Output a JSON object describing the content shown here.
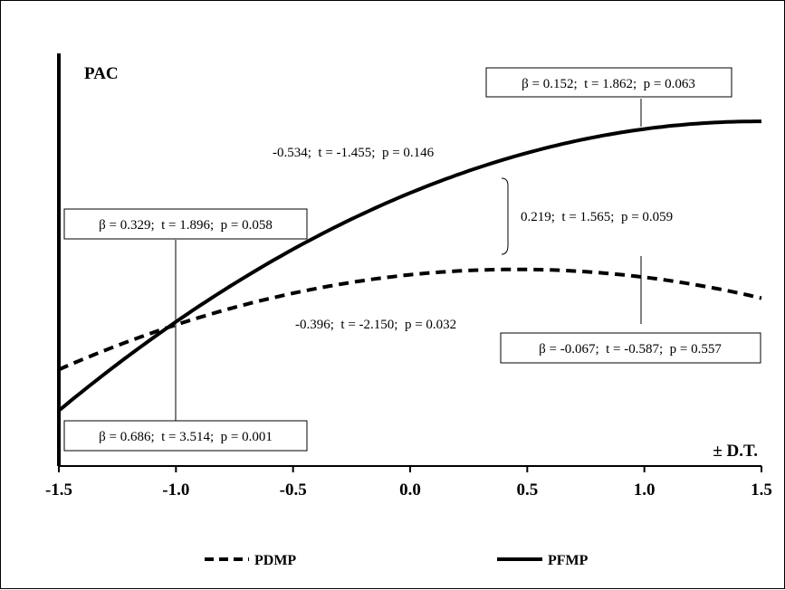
{
  "chart_data": {
    "type": "line",
    "ylabel": "PAC",
    "xlabel": "± D.T.",
    "xlim": [
      -1.5,
      1.5
    ],
    "x_ticks": [
      "-1.5",
      "-1.0",
      "-0.5",
      "0.0",
      "0.5",
      "1.0",
      "1.5"
    ],
    "series": [
      {
        "name": "PDMP",
        "style": "dashed",
        "x": [
          -1.5,
          -1.0,
          -0.5,
          0.0,
          0.5,
          1.0,
          1.5
        ],
        "y": [
          0.49,
          1.05,
          1.44,
          1.66,
          1.72,
          1.62,
          1.38
        ]
      },
      {
        "name": "PFMP",
        "style": "solid",
        "x": [
          -1.5,
          -1.0,
          -0.5,
          0.0,
          0.5,
          1.0,
          1.5
        ],
        "y": [
          0.0,
          1.07,
          1.97,
          2.67,
          3.16,
          3.45,
          3.54
        ]
      }
    ],
    "annotations": [
      "β = 0.152;  t = 1.862;  p = 0.063",
      "-0.534;  t = -1.455;  p = 0.146",
      "0.219;  t = 1.565;  p = 0.059",
      "β = 0.329;  t = 1.896;  p = 0.058",
      "-0.396;  t = -2.150;  p = 0.032",
      "β = -0.067;  t = -0.587;  p = 0.557",
      "β = 0.686;  t = 3.514;  p = 0.001"
    ]
  }
}
